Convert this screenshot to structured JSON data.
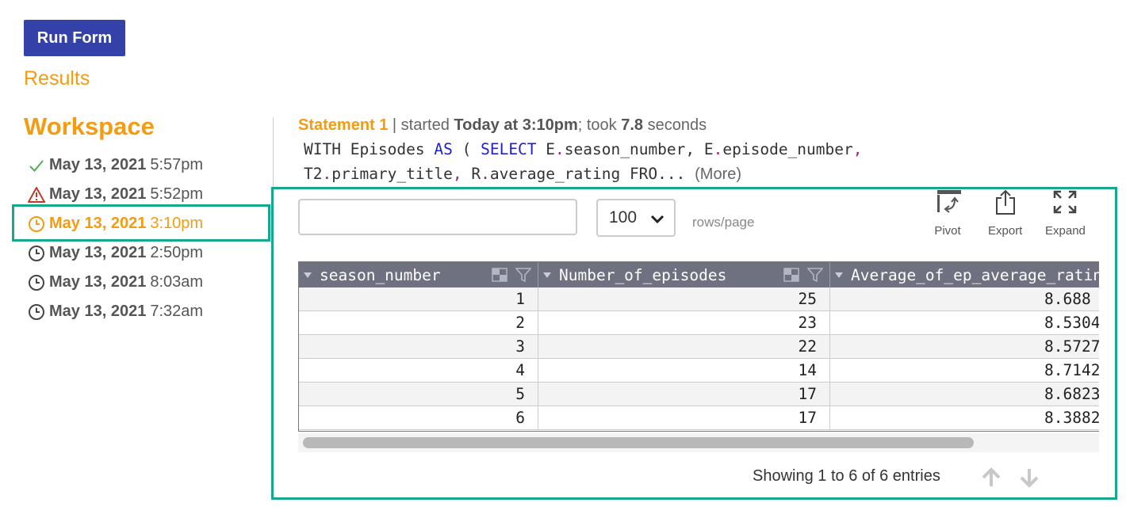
{
  "run_form": {
    "label": "Run Form"
  },
  "results_link": {
    "label": "Results"
  },
  "workspace": {
    "title": "Workspace",
    "history": [
      {
        "date": "May 13, 2021",
        "time": "5:57pm",
        "status": "success",
        "icon": "check-icon"
      },
      {
        "date": "May 13, 2021",
        "time": "5:52pm",
        "status": "error",
        "icon": "warning-icon"
      },
      {
        "date": "May 13, 2021",
        "time": "3:10pm",
        "status": "active",
        "icon": "clock-icon"
      },
      {
        "date": "May 13, 2021",
        "time": "2:50pm",
        "status": "normal",
        "icon": "clock-icon"
      },
      {
        "date": "May 13, 2021",
        "time": "8:03am",
        "status": "normal",
        "icon": "clock-icon"
      },
      {
        "date": "May 13, 2021",
        "time": "7:32am",
        "status": "normal",
        "icon": "clock-icon"
      }
    ]
  },
  "statement": {
    "label": "Statement 1",
    "sep": " | started ",
    "when": "Today at 3:10pm",
    "took_prefix": "; took ",
    "duration": "7.8",
    "duration_suffix": " seconds",
    "sql": {
      "l1a": "WITH Episodes ",
      "l1kw1": "AS",
      "l1b": " ( ",
      "l1kw2": "SELECT",
      "l1c": " E",
      "l1d": "season_number, E",
      "l1e": "episode_number",
      "l2a": "T2",
      "l2b": "primary_title",
      "l2c": " R",
      "l2d": "average_rating FRO...",
      "dot": ".",
      "comma": ",",
      "more": "(More)"
    }
  },
  "controls": {
    "search_value": "",
    "rows_per_page": "100",
    "rows_label": "rows/page",
    "pivot": "Pivot",
    "export": "Export",
    "expand": "Expand"
  },
  "table": {
    "columns": [
      "season_number",
      "Number_of_episodes",
      "Average_of_ep_average_rating"
    ],
    "rows": [
      [
        "1",
        "25",
        "8.688"
      ],
      [
        "2",
        "23",
        "8.5304"
      ],
      [
        "3",
        "22",
        "8.5727"
      ],
      [
        "4",
        "14",
        "8.7142"
      ],
      [
        "5",
        "17",
        "8.6823"
      ],
      [
        "6",
        "17",
        "8.3882"
      ]
    ]
  },
  "pagination": {
    "showing": "Showing 1 to 6 of 6 entries"
  },
  "colors": {
    "accent": "#f39c12",
    "button": "#3341a8",
    "highlight": "#16a88c",
    "header": "#6f7180"
  }
}
